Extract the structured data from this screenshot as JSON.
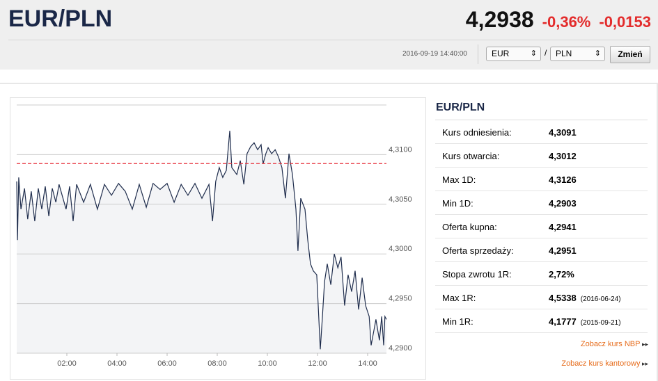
{
  "header": {
    "title": "EUR/PLN",
    "price": "4,2938",
    "change_pct": "-0,36%",
    "change_abs": "-0,0153",
    "timestamp": "2016-09-19 14:40:00"
  },
  "controls": {
    "from": "EUR",
    "separator": "/",
    "to": "PLN",
    "button": "Zmień"
  },
  "chart_data": {
    "type": "line",
    "x": [
      0,
      0.03,
      0.08,
      0.17,
      0.31,
      0.44,
      0.58,
      0.72,
      0.86,
      1.0,
      1.14,
      1.28,
      1.42,
      1.56,
      1.69,
      1.97,
      2.11,
      2.25,
      2.39,
      2.67,
      2.94,
      3.22,
      3.5,
      3.78,
      4.06,
      4.33,
      4.61,
      4.89,
      5.17,
      5.44,
      5.72,
      6.0,
      6.28,
      6.56,
      6.83,
      7.11,
      7.39,
      7.67,
      7.81,
      7.94,
      8.08,
      8.22,
      8.36,
      8.5,
      8.58,
      8.78,
      8.92,
      9.06,
      9.19,
      9.33,
      9.47,
      9.61,
      9.75,
      9.83,
      9.94,
      10.03,
      10.17,
      10.31,
      10.44,
      10.58,
      10.72,
      10.86,
      11.0,
      11.14,
      11.22,
      11.33,
      11.5,
      11.61,
      11.72,
      11.83,
      11.97,
      12.11,
      12.19,
      12.28,
      12.39,
      12.53,
      12.67,
      12.81,
      12.94,
      13.08,
      13.22,
      13.36,
      13.5,
      13.64,
      13.78,
      13.92,
      14.06,
      14.14,
      14.25,
      14.33,
      14.47,
      14.56,
      14.64,
      14.69,
      14.75
    ],
    "series": [
      {
        "color": "#1f2d4d",
        "values": [
          4.3073,
          4.3014,
          4.3077,
          4.3045,
          4.3066,
          4.3035,
          4.3063,
          4.3033,
          4.3066,
          4.3045,
          4.3068,
          4.3038,
          4.3066,
          4.3052,
          4.307,
          4.3045,
          4.3068,
          4.3033,
          4.307,
          4.3052,
          4.307,
          4.3045,
          4.307,
          4.3059,
          4.3071,
          4.3063,
          4.3045,
          4.307,
          4.3047,
          4.3071,
          4.3065,
          4.3071,
          4.3052,
          4.307,
          4.3059,
          4.3071,
          4.3056,
          4.307,
          4.3033,
          4.3073,
          4.3087,
          4.3077,
          4.3084,
          4.3124,
          4.3087,
          4.308,
          4.3094,
          4.307,
          4.3101,
          4.3108,
          4.3112,
          4.3105,
          4.311,
          4.3091,
          4.3101,
          4.3107,
          4.3101,
          4.3105,
          4.3098,
          4.3087,
          4.3056,
          4.3101,
          4.308,
          4.3045,
          4.3003,
          4.3056,
          4.3045,
          4.3014,
          4.299,
          4.2983,
          4.2979,
          4.2904,
          4.2934,
          4.2972,
          4.299,
          4.2969,
          4.3,
          4.2986,
          4.2997,
          4.2948,
          4.2979,
          4.2962,
          4.2983,
          4.2944,
          4.2976,
          4.2948,
          4.2937,
          4.2908,
          4.2923,
          4.2934,
          4.2913,
          4.2937,
          4.2908,
          4.2937,
          4.2934
        ]
      }
    ],
    "xlim": [
      0,
      14.75
    ],
    "xticks": [
      {
        "value": 2,
        "label": "02:00"
      },
      {
        "value": 4,
        "label": "04:00"
      },
      {
        "value": 6,
        "label": "06:00"
      },
      {
        "value": 8,
        "label": "08:00"
      },
      {
        "value": 10,
        "label": "10:00"
      },
      {
        "value": 12,
        "label": "12:00"
      },
      {
        "value": 14,
        "label": "14:00"
      }
    ],
    "ylim": [
      4.29,
      4.315
    ],
    "yticks": [
      {
        "value": 4.29,
        "label": "4,2900"
      },
      {
        "value": 4.295,
        "label": "4,2950"
      },
      {
        "value": 4.3,
        "label": "4,3000"
      },
      {
        "value": 4.305,
        "label": "4,3050"
      },
      {
        "value": 4.31,
        "label": "4,3100"
      }
    ],
    "reference_line": {
      "value": 4.3091,
      "color": "#e8323c"
    },
    "area_color": "#f3f4f6",
    "grid": true
  },
  "stats": {
    "title": "EUR/PLN",
    "rows": [
      {
        "label": "Kurs odniesienia:",
        "value": "4,3091"
      },
      {
        "label": "Kurs otwarcia:",
        "value": "4,3012"
      },
      {
        "label": "Max 1D:",
        "value": "4,3126"
      },
      {
        "label": "Min 1D:",
        "value": "4,2903"
      },
      {
        "label": "Oferta kupna:",
        "value": "4,2941"
      },
      {
        "label": "Oferta sprzedaży:",
        "value": "4,2951"
      },
      {
        "label": "Stopa zwrotu 1R:",
        "value": "2,72%"
      },
      {
        "label": "Max 1R:",
        "value": "4,5338",
        "note": "(2016-06-24)"
      },
      {
        "label": "Min 1R:",
        "value": "4,1777",
        "note": "(2015-09-21)"
      }
    ]
  },
  "links": [
    "Zobacz kurs NBP",
    "Zobacz kurs kantorowy"
  ]
}
